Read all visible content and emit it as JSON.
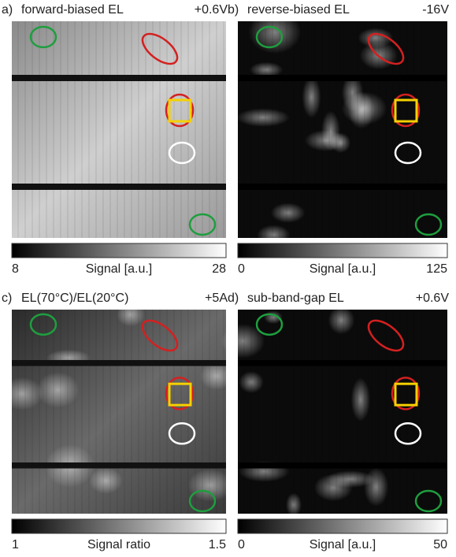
{
  "panels": [
    {
      "label": "a)",
      "title": "forward-biased EL",
      "condition": "+0.6V",
      "colorbar": {
        "min": 8,
        "label": "Signal [a.u.]",
        "max": 28
      }
    },
    {
      "label": "b)",
      "title": "reverse-biased EL",
      "condition": "-16V",
      "colorbar": {
        "min": 0,
        "label": "Signal [a.u.]",
        "max": 125
      }
    },
    {
      "label": "c)",
      "title": "EL(70°C)/EL(20°C)",
      "condition": "+5A",
      "colorbar": {
        "min": 1,
        "label": "Signal ratio",
        "max": 1.5
      }
    },
    {
      "label": "d)",
      "title": "sub-band-gap EL",
      "condition": "+0.6V",
      "colorbar": {
        "min": 0,
        "label": "Signal [a.u.]",
        "max": 50
      }
    }
  ]
}
